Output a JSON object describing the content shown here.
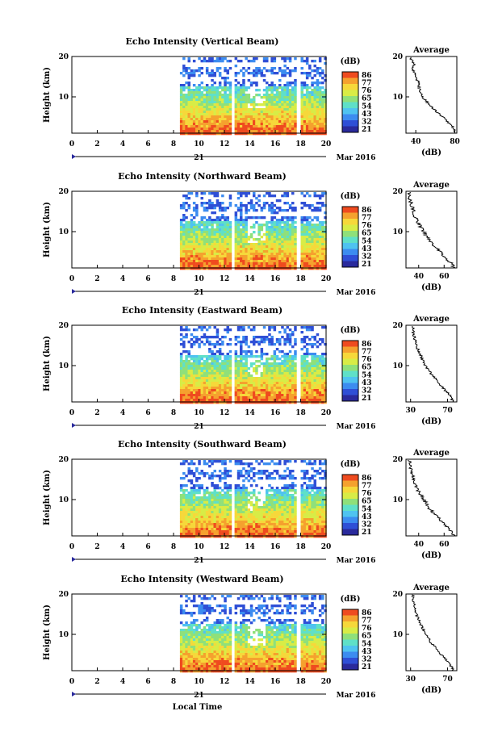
{
  "figure": {
    "xlabel": "Local Time",
    "date_label": "Mar 2016",
    "day_label": "21"
  },
  "colorbar": {
    "unit": "(dB)",
    "ticks": [
      "86",
      "77",
      "76",
      "65",
      "54",
      "43",
      "32",
      "21"
    ],
    "palette": [
      "#2a2a9c",
      "#2f4fd6",
      "#3c8cf0",
      "#4fc3f0",
      "#5fe0c8",
      "#8fe07a",
      "#d8ec46",
      "#f6d83a",
      "#f5a12e",
      "#ef4b1f"
    ]
  },
  "chart_data": [
    {
      "type": "heatmap",
      "title": "Echo Intensity (Vertical Beam)",
      "ylabel": "Height (km)",
      "xlim": [
        0,
        20
      ],
      "ylim": [
        1,
        20
      ],
      "x_ticks": [
        "0",
        "2",
        "4",
        "6",
        "8",
        "10",
        "12",
        "14",
        "16",
        "18",
        "20"
      ],
      "y_ticks": [
        "20",
        "10"
      ],
      "data_hours": [
        [
          8.5,
          12.5
        ],
        [
          12.8,
          17.6
        ],
        [
          18.0,
          20.0
        ]
      ],
      "profile": {
        "title": "Average",
        "xlabel": "(dB)",
        "x_ticks": [
          "40",
          "80"
        ],
        "xlim": [
          30,
          82
        ],
        "heights": [
          1,
          2,
          3,
          4,
          5,
          6,
          7,
          8,
          9,
          10,
          11,
          12,
          13,
          14,
          15,
          16,
          17,
          18,
          19,
          20
        ],
        "values": [
          80,
          79,
          76,
          72,
          68,
          63,
          58,
          55,
          50,
          47,
          45,
          44,
          43,
          42,
          40,
          38,
          36,
          38,
          36,
          35
        ]
      }
    },
    {
      "type": "heatmap",
      "title": "Echo Intensity (Northward Beam)",
      "ylabel": "Height (km)",
      "xlim": [
        0,
        20
      ],
      "ylim": [
        1,
        20
      ],
      "x_ticks": [
        "0",
        "2",
        "4",
        "6",
        "8",
        "10",
        "12",
        "14",
        "16",
        "18",
        "20"
      ],
      "y_ticks": [
        "20",
        "10"
      ],
      "data_hours": [
        [
          8.5,
          12.5
        ],
        [
          12.8,
          17.6
        ],
        [
          18.0,
          20.0
        ]
      ],
      "profile": {
        "title": "Average",
        "xlabel": "(dB)",
        "x_ticks": [
          "40",
          "60"
        ],
        "xlim": [
          30,
          70
        ],
        "heights": [
          1,
          2,
          3,
          4,
          5,
          6,
          7,
          8,
          9,
          10,
          11,
          12,
          13,
          14,
          15,
          16,
          17,
          18,
          19,
          20
        ],
        "values": [
          68,
          66,
          63,
          60,
          57,
          54,
          51,
          48,
          46,
          44,
          42,
          40,
          38,
          37,
          36,
          35,
          34,
          33,
          33,
          32
        ]
      }
    },
    {
      "type": "heatmap",
      "title": "Echo Intensity (Eastward Beam)",
      "ylabel": "Height (km)",
      "xlim": [
        0,
        20
      ],
      "ylim": [
        1,
        20
      ],
      "x_ticks": [
        "0",
        "2",
        "4",
        "6",
        "8",
        "10",
        "12",
        "14",
        "16",
        "18",
        "20"
      ],
      "y_ticks": [
        "20",
        "10"
      ],
      "data_hours": [
        [
          8.5,
          12.5
        ],
        [
          12.8,
          17.6
        ],
        [
          18.0,
          20.0
        ]
      ],
      "profile": {
        "title": "Average",
        "xlabel": "(dB)",
        "x_ticks": [
          "30",
          "70"
        ],
        "xlim": [
          25,
          80
        ],
        "heights": [
          1,
          2,
          3,
          4,
          5,
          6,
          7,
          8,
          9,
          10,
          11,
          12,
          13,
          14,
          15,
          16,
          17,
          18,
          19,
          20
        ],
        "values": [
          76,
          74,
          71,
          67,
          63,
          59,
          56,
          52,
          49,
          46,
          44,
          42,
          40,
          38,
          36,
          35,
          34,
          33,
          33,
          32
        ]
      }
    },
    {
      "type": "heatmap",
      "title": "Echo Intensity (Southward Beam)",
      "ylabel": "Height (km)",
      "xlim": [
        0,
        20
      ],
      "ylim": [
        1,
        20
      ],
      "x_ticks": [
        "0",
        "2",
        "4",
        "6",
        "8",
        "10",
        "12",
        "14",
        "16",
        "18",
        "20"
      ],
      "y_ticks": [
        "20",
        "10"
      ],
      "data_hours": [
        [
          8.5,
          12.5
        ],
        [
          12.8,
          17.6
        ],
        [
          18.0,
          20.0
        ]
      ],
      "profile": {
        "title": "Average",
        "xlabel": "(dB)",
        "x_ticks": [
          "40",
          "60"
        ],
        "xlim": [
          30,
          70
        ],
        "heights": [
          1,
          2,
          3,
          4,
          5,
          6,
          7,
          8,
          9,
          10,
          11,
          12,
          13,
          14,
          15,
          16,
          17,
          18,
          19,
          20
        ],
        "values": [
          68,
          66,
          63,
          60,
          57,
          54,
          51,
          48,
          46,
          44,
          42,
          40,
          38,
          37,
          36,
          35,
          34,
          33,
          33,
          32
        ]
      }
    },
    {
      "type": "heatmap",
      "title": "Echo Intensity (Westward Beam)",
      "ylabel": "Height (km)",
      "xlim": [
        0,
        20
      ],
      "ylim": [
        1,
        20
      ],
      "x_ticks": [
        "0",
        "2",
        "4",
        "6",
        "8",
        "10",
        "12",
        "14",
        "16",
        "18",
        "20"
      ],
      "y_ticks": [
        "20",
        "10"
      ],
      "data_hours": [
        [
          8.5,
          12.5
        ],
        [
          12.8,
          17.6
        ],
        [
          18.0,
          20.0
        ]
      ],
      "profile": {
        "title": "Average",
        "xlabel": "(dB)",
        "x_ticks": [
          "30",
          "70"
        ],
        "xlim": [
          25,
          80
        ],
        "heights": [
          1,
          2,
          3,
          4,
          5,
          6,
          7,
          8,
          9,
          10,
          11,
          12,
          13,
          14,
          15,
          16,
          17,
          18,
          19,
          20
        ],
        "values": [
          76,
          74,
          71,
          67,
          63,
          59,
          56,
          52,
          49,
          46,
          44,
          42,
          40,
          38,
          36,
          35,
          34,
          33,
          33,
          32
        ]
      }
    }
  ]
}
